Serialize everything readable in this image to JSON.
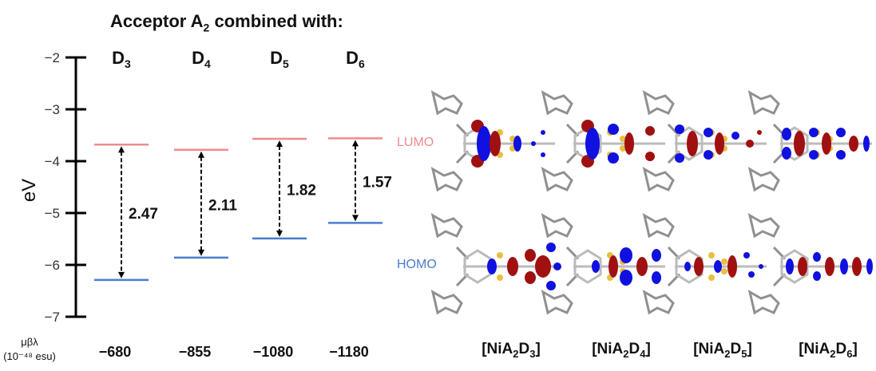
{
  "title": {
    "prefix": "Acceptor A",
    "sub": "2",
    "suffix": " combined with:"
  },
  "chart_data": {
    "type": "energy-level diagram",
    "ylabel": "eV",
    "ylim": [
      -7,
      -2
    ],
    "yticks": [
      -2,
      -3,
      -4,
      -5,
      -6,
      -7
    ],
    "ytick_labels": [
      "−2",
      "−3",
      "−4",
      "−5",
      "−6",
      "−7"
    ],
    "columns": [
      {
        "base": "D",
        "sub": "3",
        "lumo": -3.68,
        "homo": -6.29,
        "gap": "2.47",
        "mubeta": "−680"
      },
      {
        "base": "D",
        "sub": "4",
        "lumo": -3.78,
        "homo": -5.86,
        "gap": "2.11",
        "mubeta": "−855"
      },
      {
        "base": "D",
        "sub": "5",
        "lumo": -3.57,
        "homo": -5.49,
        "gap": "1.82",
        "mubeta": "−1080"
      },
      {
        "base": "D",
        "sub": "6",
        "lumo": -3.56,
        "homo": -5.19,
        "gap": "1.57",
        "mubeta": "−1180"
      }
    ],
    "lumo_label": "LUMO",
    "homo_label": "HOMO",
    "lumo_color": "#f08a8e",
    "homo_color": "#4a7bd0",
    "mubeta_label_top": "μβλ",
    "mubeta_label_bottom": "(10⁻⁴⁸ esu)",
    "grid": false,
    "legend": "none"
  },
  "complexes": [
    {
      "a_sub": "2",
      "d_sub": "3",
      "label": "[NiA₂D₃]"
    },
    {
      "a_sub": "2",
      "d_sub": "4",
      "label": "[NiA₂D₄]"
    },
    {
      "a_sub": "2",
      "d_sub": "5",
      "label": "[NiA₂D₅]"
    },
    {
      "a_sub": "2",
      "d_sub": "6",
      "label": "[NiA₂D₆]"
    }
  ],
  "colors": {
    "orbital_positive": "#a01010",
    "orbital_negative": "#1010e0",
    "sulfur_atom": "#e8c040",
    "carbon_frame": "#909090"
  }
}
